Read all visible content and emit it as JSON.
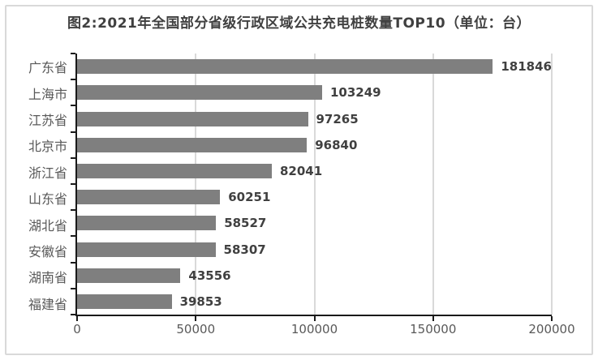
{
  "chart_data": {
    "type": "bar",
    "orientation": "horizontal",
    "title": "图2:2021年全国部分省级行政区域公共充电桩数量TOP10（单位：台）",
    "categories": [
      "广东省",
      "上海市",
      "江苏省",
      "北京市",
      "浙江省",
      "山东省",
      "湖北省",
      "安徽省",
      "湖南省",
      "福建省"
    ],
    "values": [
      181846,
      103249,
      97265,
      96840,
      82041,
      60251,
      58527,
      58307,
      43556,
      39853
    ],
    "x_ticks": [
      "0",
      "50000",
      "100000",
      "150000",
      "200000"
    ],
    "xlim": [
      0,
      200000
    ],
    "xlabel": "",
    "ylabel": "",
    "grid": "vertical",
    "legend": "none",
    "data_labels": "outside-end",
    "colors": {
      "bar": "#7f7f7f",
      "gridline": "#d9d9d9",
      "axis": "#1a1a1a",
      "title_text": "#404040",
      "value_label_text": "#404040",
      "category_text": "#595959",
      "tick_text": "#595959",
      "frame_border": "#d9d9d9",
      "background": "#ffffff"
    }
  }
}
